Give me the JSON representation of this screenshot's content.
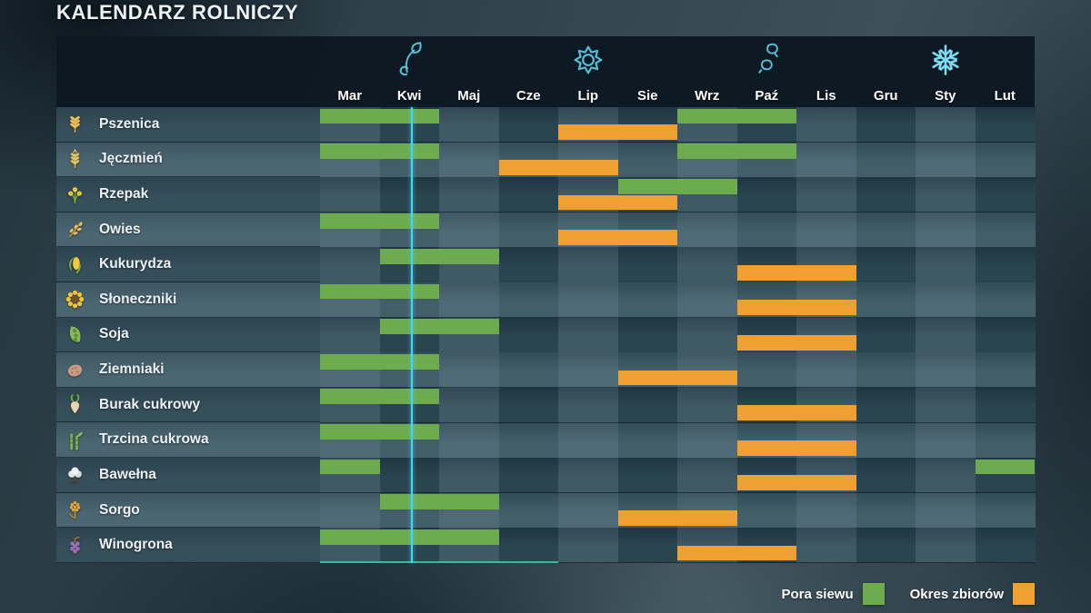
{
  "title": "KALENDARZ ROLNICZY",
  "legend": {
    "sow_label": "Pora siewu",
    "harvest_label": "Okres zbiorów"
  },
  "colors": {
    "sow": "#6dab4f",
    "harvest": "#eea032",
    "today_line": "#3fd9f5",
    "progress_line": "#3ecfae",
    "season_icon": "#56c3dc",
    "snowflake_icon": "#7edcf4"
  },
  "panel": {
    "months": [
      "Mar",
      "Kwi",
      "Maj",
      "Cze",
      "Lip",
      "Sie",
      "Wrz",
      "Paź",
      "Lis",
      "Gru",
      "Sty",
      "Lut"
    ],
    "seasons": [
      {
        "name": "wiosna",
        "icon": "sprout-icon",
        "month": "Kwi"
      },
      {
        "name": "lato",
        "icon": "sun-icon",
        "month": "Lip"
      },
      {
        "name": "jesień",
        "icon": "autumn-leaves-icon",
        "month": "Paź"
      },
      {
        "name": "zima",
        "icon": "snowflake-icon",
        "month": "Sty"
      }
    ],
    "today_marker": {
      "month": "Kwi",
      "fraction": 0.53
    },
    "progress_underline": {
      "start_month": "Mar",
      "end_month": "Cze"
    }
  },
  "chart_data": {
    "type": "gantt-calendar",
    "title": "KALENDARZ ROLNICZY",
    "x_axis_months": [
      "Mar",
      "Kwi",
      "Maj",
      "Cze",
      "Lip",
      "Sie",
      "Wrz",
      "Paź",
      "Lis",
      "Gru",
      "Sty",
      "Lut"
    ],
    "legend": [
      "Pora siewu",
      "Okres zbiorów"
    ],
    "crops": [
      {
        "name": "Pszenica",
        "icon": "wheat-icon",
        "sow_months": [
          [
            "Mar",
            "Kwi"
          ],
          [
            "Wrz",
            "Paź"
          ]
        ],
        "harvest_months": [
          [
            "Lip",
            "Sie"
          ]
        ]
      },
      {
        "name": "Jęczmień",
        "icon": "barley-icon",
        "sow_months": [
          [
            "Mar",
            "Kwi"
          ],
          [
            "Wrz",
            "Paź"
          ]
        ],
        "harvest_months": [
          [
            "Cze",
            "Lip"
          ]
        ]
      },
      {
        "name": "Rzepak",
        "icon": "canola-icon",
        "sow_months": [
          [
            "Sie",
            "Wrz"
          ]
        ],
        "harvest_months": [
          [
            "Lip",
            "Sie"
          ]
        ]
      },
      {
        "name": "Owies",
        "icon": "oat-icon",
        "sow_months": [
          [
            "Mar",
            "Kwi"
          ]
        ],
        "harvest_months": [
          [
            "Lip",
            "Sie"
          ]
        ]
      },
      {
        "name": "Kukurydza",
        "icon": "corn-icon",
        "sow_months": [
          [
            "Kwi",
            "Maj"
          ]
        ],
        "harvest_months": [
          [
            "Paź",
            "Lis"
          ]
        ]
      },
      {
        "name": "Słoneczniki",
        "icon": "sunflower-icon",
        "sow_months": [
          [
            "Mar",
            "Kwi"
          ]
        ],
        "harvest_months": [
          [
            "Paź",
            "Lis"
          ]
        ]
      },
      {
        "name": "Soja",
        "icon": "soybean-icon",
        "sow_months": [
          [
            "Kwi",
            "Maj"
          ]
        ],
        "harvest_months": [
          [
            "Paź",
            "Lis"
          ]
        ]
      },
      {
        "name": "Ziemniaki",
        "icon": "potato-icon",
        "sow_months": [
          [
            "Mar",
            "Kwi"
          ]
        ],
        "harvest_months": [
          [
            "Sie",
            "Wrz"
          ]
        ]
      },
      {
        "name": "Burak cukrowy",
        "icon": "sugar-beet-icon",
        "sow_months": [
          [
            "Mar",
            "Kwi"
          ]
        ],
        "harvest_months": [
          [
            "Paź",
            "Lis"
          ]
        ]
      },
      {
        "name": "Trzcina cukrowa",
        "icon": "sugarcane-icon",
        "sow_months": [
          [
            "Mar",
            "Kwi"
          ]
        ],
        "harvest_months": [
          [
            "Paź",
            "Lis"
          ]
        ]
      },
      {
        "name": "Bawełna",
        "icon": "cotton-icon",
        "sow_months": [
          [
            "Mar",
            "Mar"
          ],
          [
            "Lut",
            "Lut"
          ]
        ],
        "harvest_months": [
          [
            "Paź",
            "Lis"
          ]
        ]
      },
      {
        "name": "Sorgo",
        "icon": "sorghum-icon",
        "sow_months": [
          [
            "Kwi",
            "Maj"
          ]
        ],
        "harvest_months": [
          [
            "Sie",
            "Wrz"
          ]
        ]
      },
      {
        "name": "Winogrona",
        "icon": "grape-icon",
        "sow_months": [
          [
            "Mar",
            "Maj"
          ]
        ],
        "harvest_months": [
          [
            "Wrz",
            "Paź"
          ]
        ]
      }
    ]
  }
}
